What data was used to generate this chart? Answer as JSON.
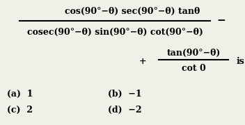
{
  "bg_color": "#f0efe8",
  "text_color": "#000000",
  "numerator1": "cos(90°−θ) sec(90°−θ) tanθ",
  "denominator1": "cosec(90°−θ) sin(90°−θ) cot(90°−θ)",
  "minus_sign": "−",
  "plus_sign": "+",
  "numerator2": "tan(90°−θ)",
  "denominator2": "cot 0",
  "suffix": "is",
  "options": [
    "(a)  1",
    "(b)  −1",
    "(c)  2",
    "(d)  −2"
  ],
  "fig_width": 3.52,
  "fig_height": 1.8,
  "dpi": 100
}
